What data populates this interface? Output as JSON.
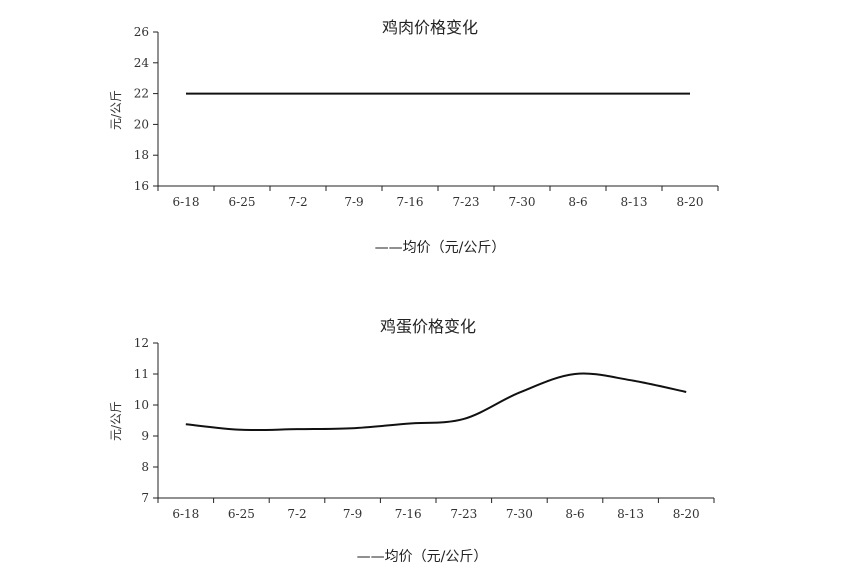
{
  "chart_data": [
    {
      "type": "line",
      "title": "鸡肉价格变化",
      "ylabel": "元/公斤",
      "xlabel": "",
      "categories": [
        "6-18",
        "6-25",
        "7-2",
        "7-9",
        "7-16",
        "7-23",
        "7-30",
        "8-6",
        "8-13",
        "8-20"
      ],
      "ylim": [
        16,
        26
      ],
      "yticks": [
        16,
        18,
        20,
        22,
        24,
        26
      ],
      "series": [
        {
          "name": "——均价（元/公斤）",
          "values": [
            22,
            22,
            22,
            22,
            22,
            22,
            22,
            22,
            22,
            22
          ]
        }
      ],
      "legend_position": "bottom",
      "grid": false
    },
    {
      "type": "line",
      "title": "鸡蛋价格变化",
      "ylabel": "元/公斤",
      "xlabel": "",
      "categories": [
        "6-18",
        "6-25",
        "7-2",
        "7-9",
        "7-16",
        "7-23",
        "7-30",
        "8-6",
        "8-13",
        "8-20"
      ],
      "ylim": [
        7,
        12
      ],
      "yticks": [
        7,
        8,
        9,
        10,
        11,
        12
      ],
      "series": [
        {
          "name": "——均价（元/公斤）",
          "values": [
            9.38,
            9.2,
            9.22,
            9.25,
            9.4,
            9.55,
            10.4,
            11.0,
            10.8,
            10.42
          ]
        }
      ],
      "legend_position": "bottom",
      "grid": false
    }
  ]
}
